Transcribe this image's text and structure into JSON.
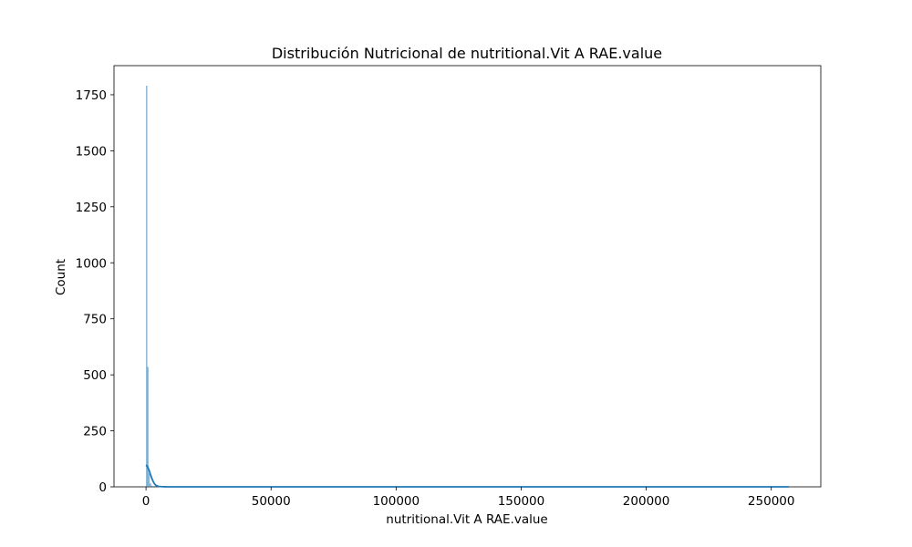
{
  "chart_data": {
    "type": "bar",
    "title": "Distribución Nutricional de nutritional.Vit A RAE.value",
    "xlabel": "nutritional.Vit A RAE.value",
    "ylabel": "Count",
    "xlim": [
      -12800,
      269800
    ],
    "ylim": [
      0,
      1880
    ],
    "x_ticks": [
      0,
      50000,
      100000,
      150000,
      200000,
      250000
    ],
    "x_tick_labels": [
      "0",
      "50000",
      "100000",
      "150000",
      "200000",
      "250000"
    ],
    "y_ticks": [
      0,
      250,
      500,
      750,
      1000,
      1250,
      1500,
      1750
    ],
    "y_tick_labels": [
      "0",
      "250",
      "500",
      "750",
      "1000",
      "1250",
      "1500",
      "1750"
    ],
    "grid": false,
    "histogram": {
      "bins": [
        {
          "x0": 0,
          "x1": 500,
          "count": 1790
        },
        {
          "x0": 500,
          "x1": 1000,
          "count": 535
        },
        {
          "x0": 1000,
          "x1": 1500,
          "count": 60
        },
        {
          "x0": 1500,
          "x1": 2000,
          "count": 15
        },
        {
          "x0": 2000,
          "x1": 2500,
          "count": 5
        }
      ]
    },
    "kde": {
      "x": [
        0,
        500,
        1000,
        1500,
        2000,
        2500,
        3000,
        3500,
        4000,
        5000,
        6000,
        8000,
        10000,
        50000,
        100000,
        150000,
        200000,
        257000
      ],
      "y": [
        97,
        92,
        80,
        65,
        48,
        33,
        21,
        12,
        6,
        2,
        1,
        0.3,
        0.1,
        0,
        0,
        0,
        0,
        0
      ]
    },
    "colors": {
      "bar": "#1f77b4",
      "line": "#1f77b4"
    }
  }
}
